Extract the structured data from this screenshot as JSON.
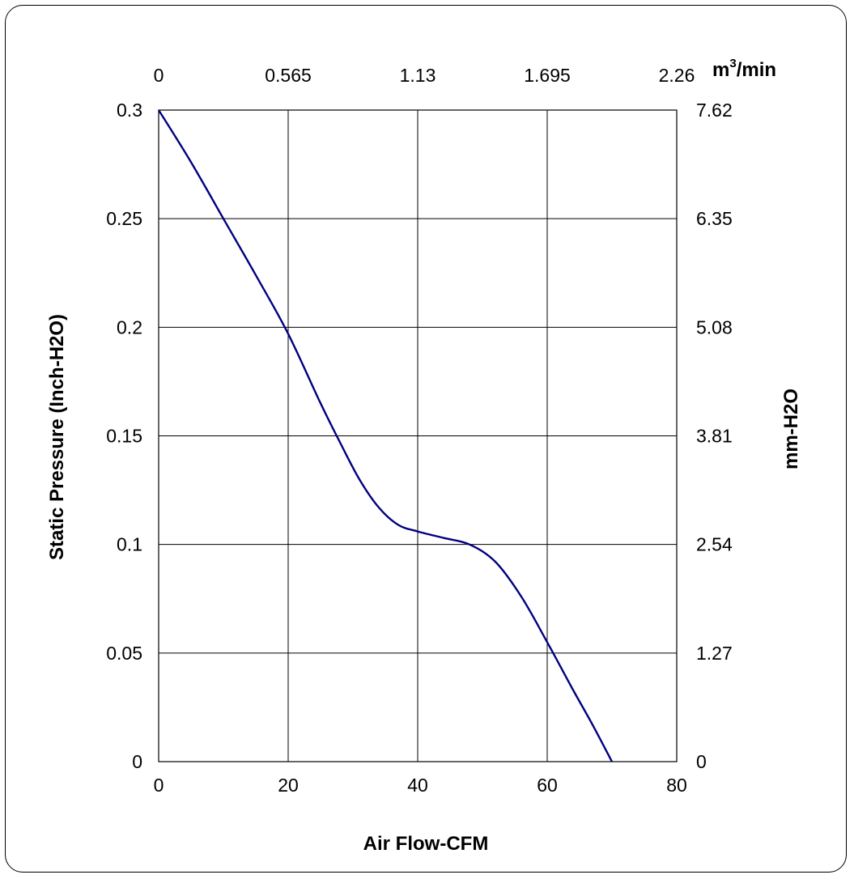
{
  "chart_data": {
    "type": "line",
    "xlabel": "Air Flow-CFM",
    "ylabel": "Static Pressure (Inch-H2O)",
    "y2label": "mm-H2O",
    "x2label_prefix": "m",
    "x2label_sup": "3",
    "x2label_suffix": "/min",
    "xlim": [
      0,
      80
    ],
    "ylim": [
      0,
      0.3
    ],
    "grid": true,
    "x_ticks": [
      "0",
      "20",
      "40",
      "60",
      "80"
    ],
    "y_ticks": [
      "0",
      "0.05",
      "0.1",
      "0.15",
      "0.2",
      "0.25",
      "0.3"
    ],
    "x2_ticks": [
      "0",
      "0.565",
      "1.13",
      "1.695",
      "2.26"
    ],
    "y2_ticks": [
      "0",
      "1.27",
      "2.54",
      "3.81",
      "5.08",
      "6.35",
      "7.62"
    ],
    "series": [
      {
        "color": "#000080",
        "x": [
          0,
          5,
          10,
          15,
          20,
          25,
          28,
          31,
          34,
          37,
          40,
          44,
          48,
          52,
          56,
          60,
          64,
          67,
          70
        ],
        "y": [
          0.3,
          0.276,
          0.25,
          0.224,
          0.197,
          0.165,
          0.147,
          0.13,
          0.117,
          0.109,
          0.106,
          0.103,
          0.1,
          0.092,
          0.076,
          0.055,
          0.033,
          0.017,
          0.0
        ]
      }
    ]
  }
}
